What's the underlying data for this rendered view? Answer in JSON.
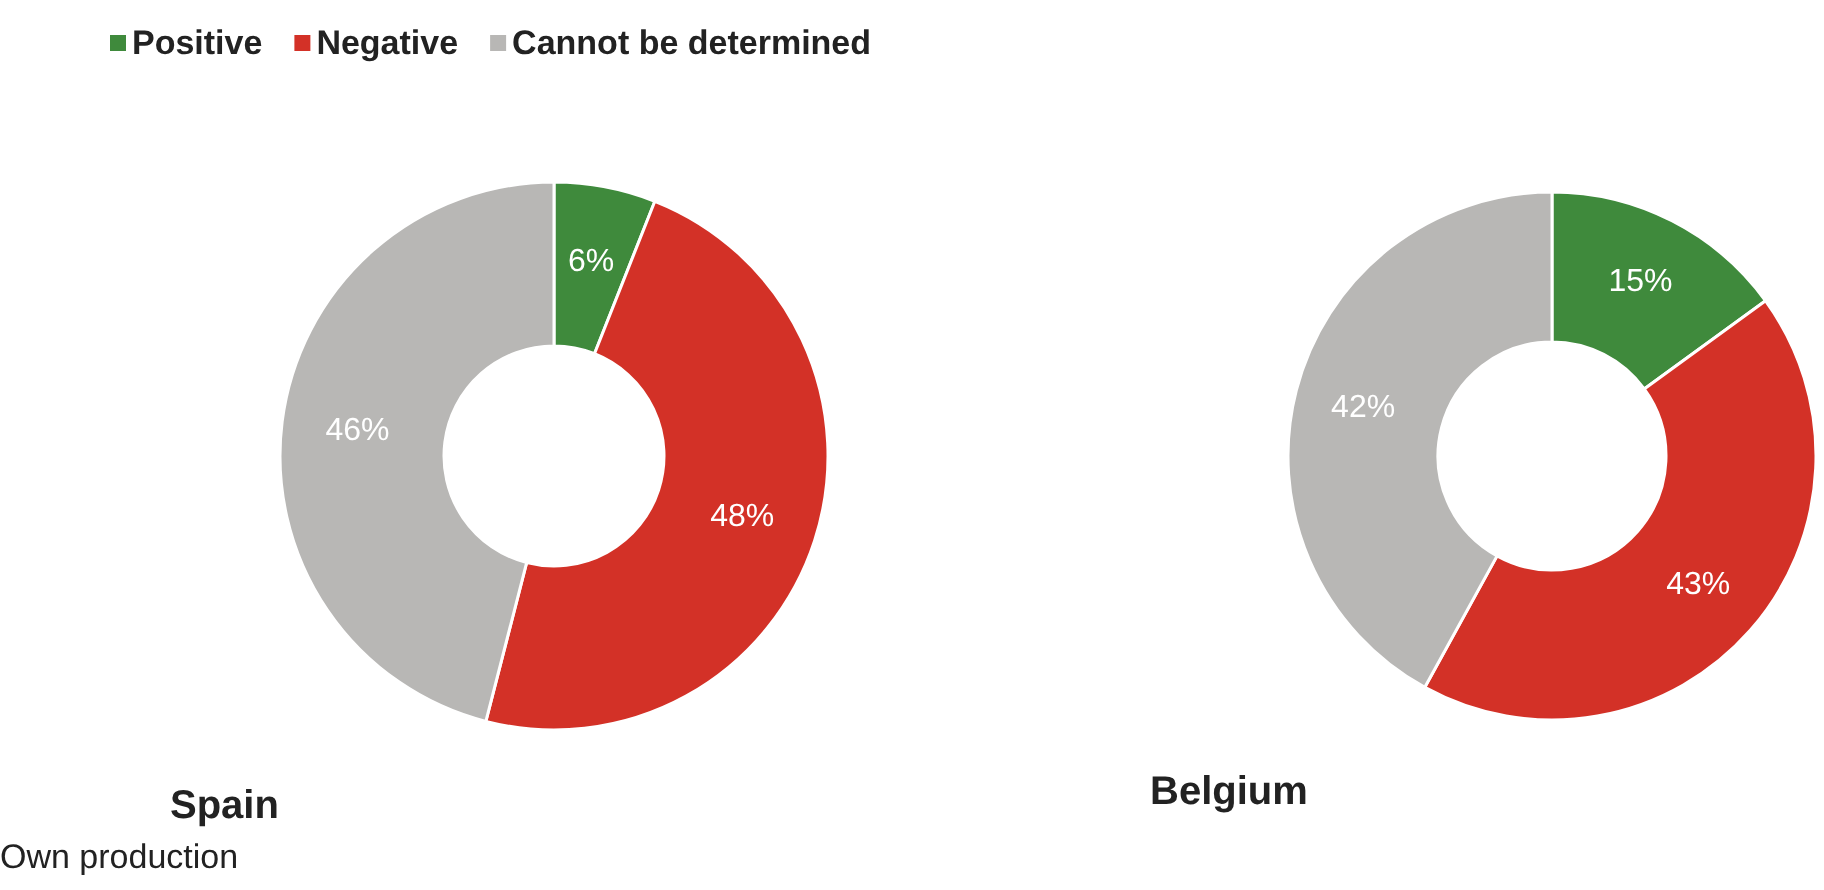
{
  "chart_data": [
    {
      "type": "donut",
      "title": "Spain",
      "categories": [
        "Positive",
        "Negative",
        "Cannot be determined"
      ],
      "values": [
        6,
        48,
        46
      ],
      "value_labels": [
        "6%",
        "48%",
        "46%"
      ],
      "colors": [
        "#3f8a3c",
        "#d33127",
        "#b8b7b5"
      ],
      "legend": "top",
      "annotations": [
        "Own production"
      ]
    },
    {
      "type": "donut",
      "title": "Belgium",
      "categories": [
        null,
        null,
        null
      ],
      "values": [
        15,
        43,
        42
      ],
      "value_labels": [
        "15%",
        "43%",
        "42%"
      ],
      "colors": [
        "#3f8a3c",
        "#d33127",
        "#b8b7b5"
      ],
      "legend": false
    }
  ]
}
